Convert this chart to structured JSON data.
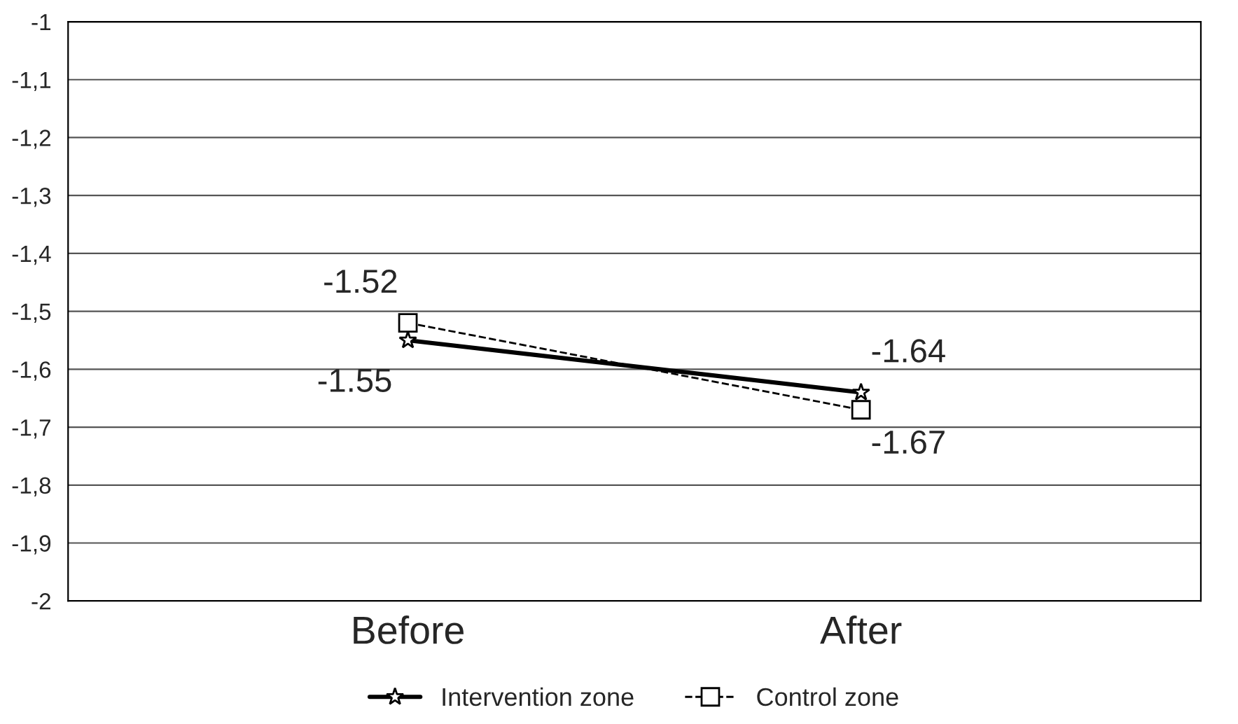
{
  "chart_data": {
    "type": "line",
    "categories": [
      "Before",
      "After"
    ],
    "series": [
      {
        "name": "Intervention zone",
        "color": "#000000",
        "values": [
          -1.55,
          -1.64
        ],
        "marker": "star",
        "line_style": "solid",
        "value_labels": [
          "-1.55",
          "-1.64"
        ]
      },
      {
        "name": "Control zone",
        "color": "#000000",
        "values": [
          -1.52,
          -1.67
        ],
        "marker": "square",
        "line_style": "dashed",
        "value_labels": [
          "-1.52",
          "-1.67"
        ]
      }
    ],
    "ylim": [
      -2,
      -1
    ],
    "yticks": [
      {
        "value": -2,
        "label": "-2"
      },
      {
        "value": -1.9,
        "label": "-1,9"
      },
      {
        "value": -1.8,
        "label": "-1,8"
      },
      {
        "value": -1.7,
        "label": "-1,7"
      },
      {
        "value": -1.6,
        "label": "-1,6"
      },
      {
        "value": -1.5,
        "label": "-1,5"
      },
      {
        "value": -1.4,
        "label": "-1,4"
      },
      {
        "value": -1.3,
        "label": "-1,3"
      },
      {
        "value": -1.2,
        "label": "-1,2"
      },
      {
        "value": -1.1,
        "label": "-1,1"
      },
      {
        "value": -1,
        "label": "-1"
      }
    ],
    "grid": "y",
    "legend": "bottom"
  }
}
